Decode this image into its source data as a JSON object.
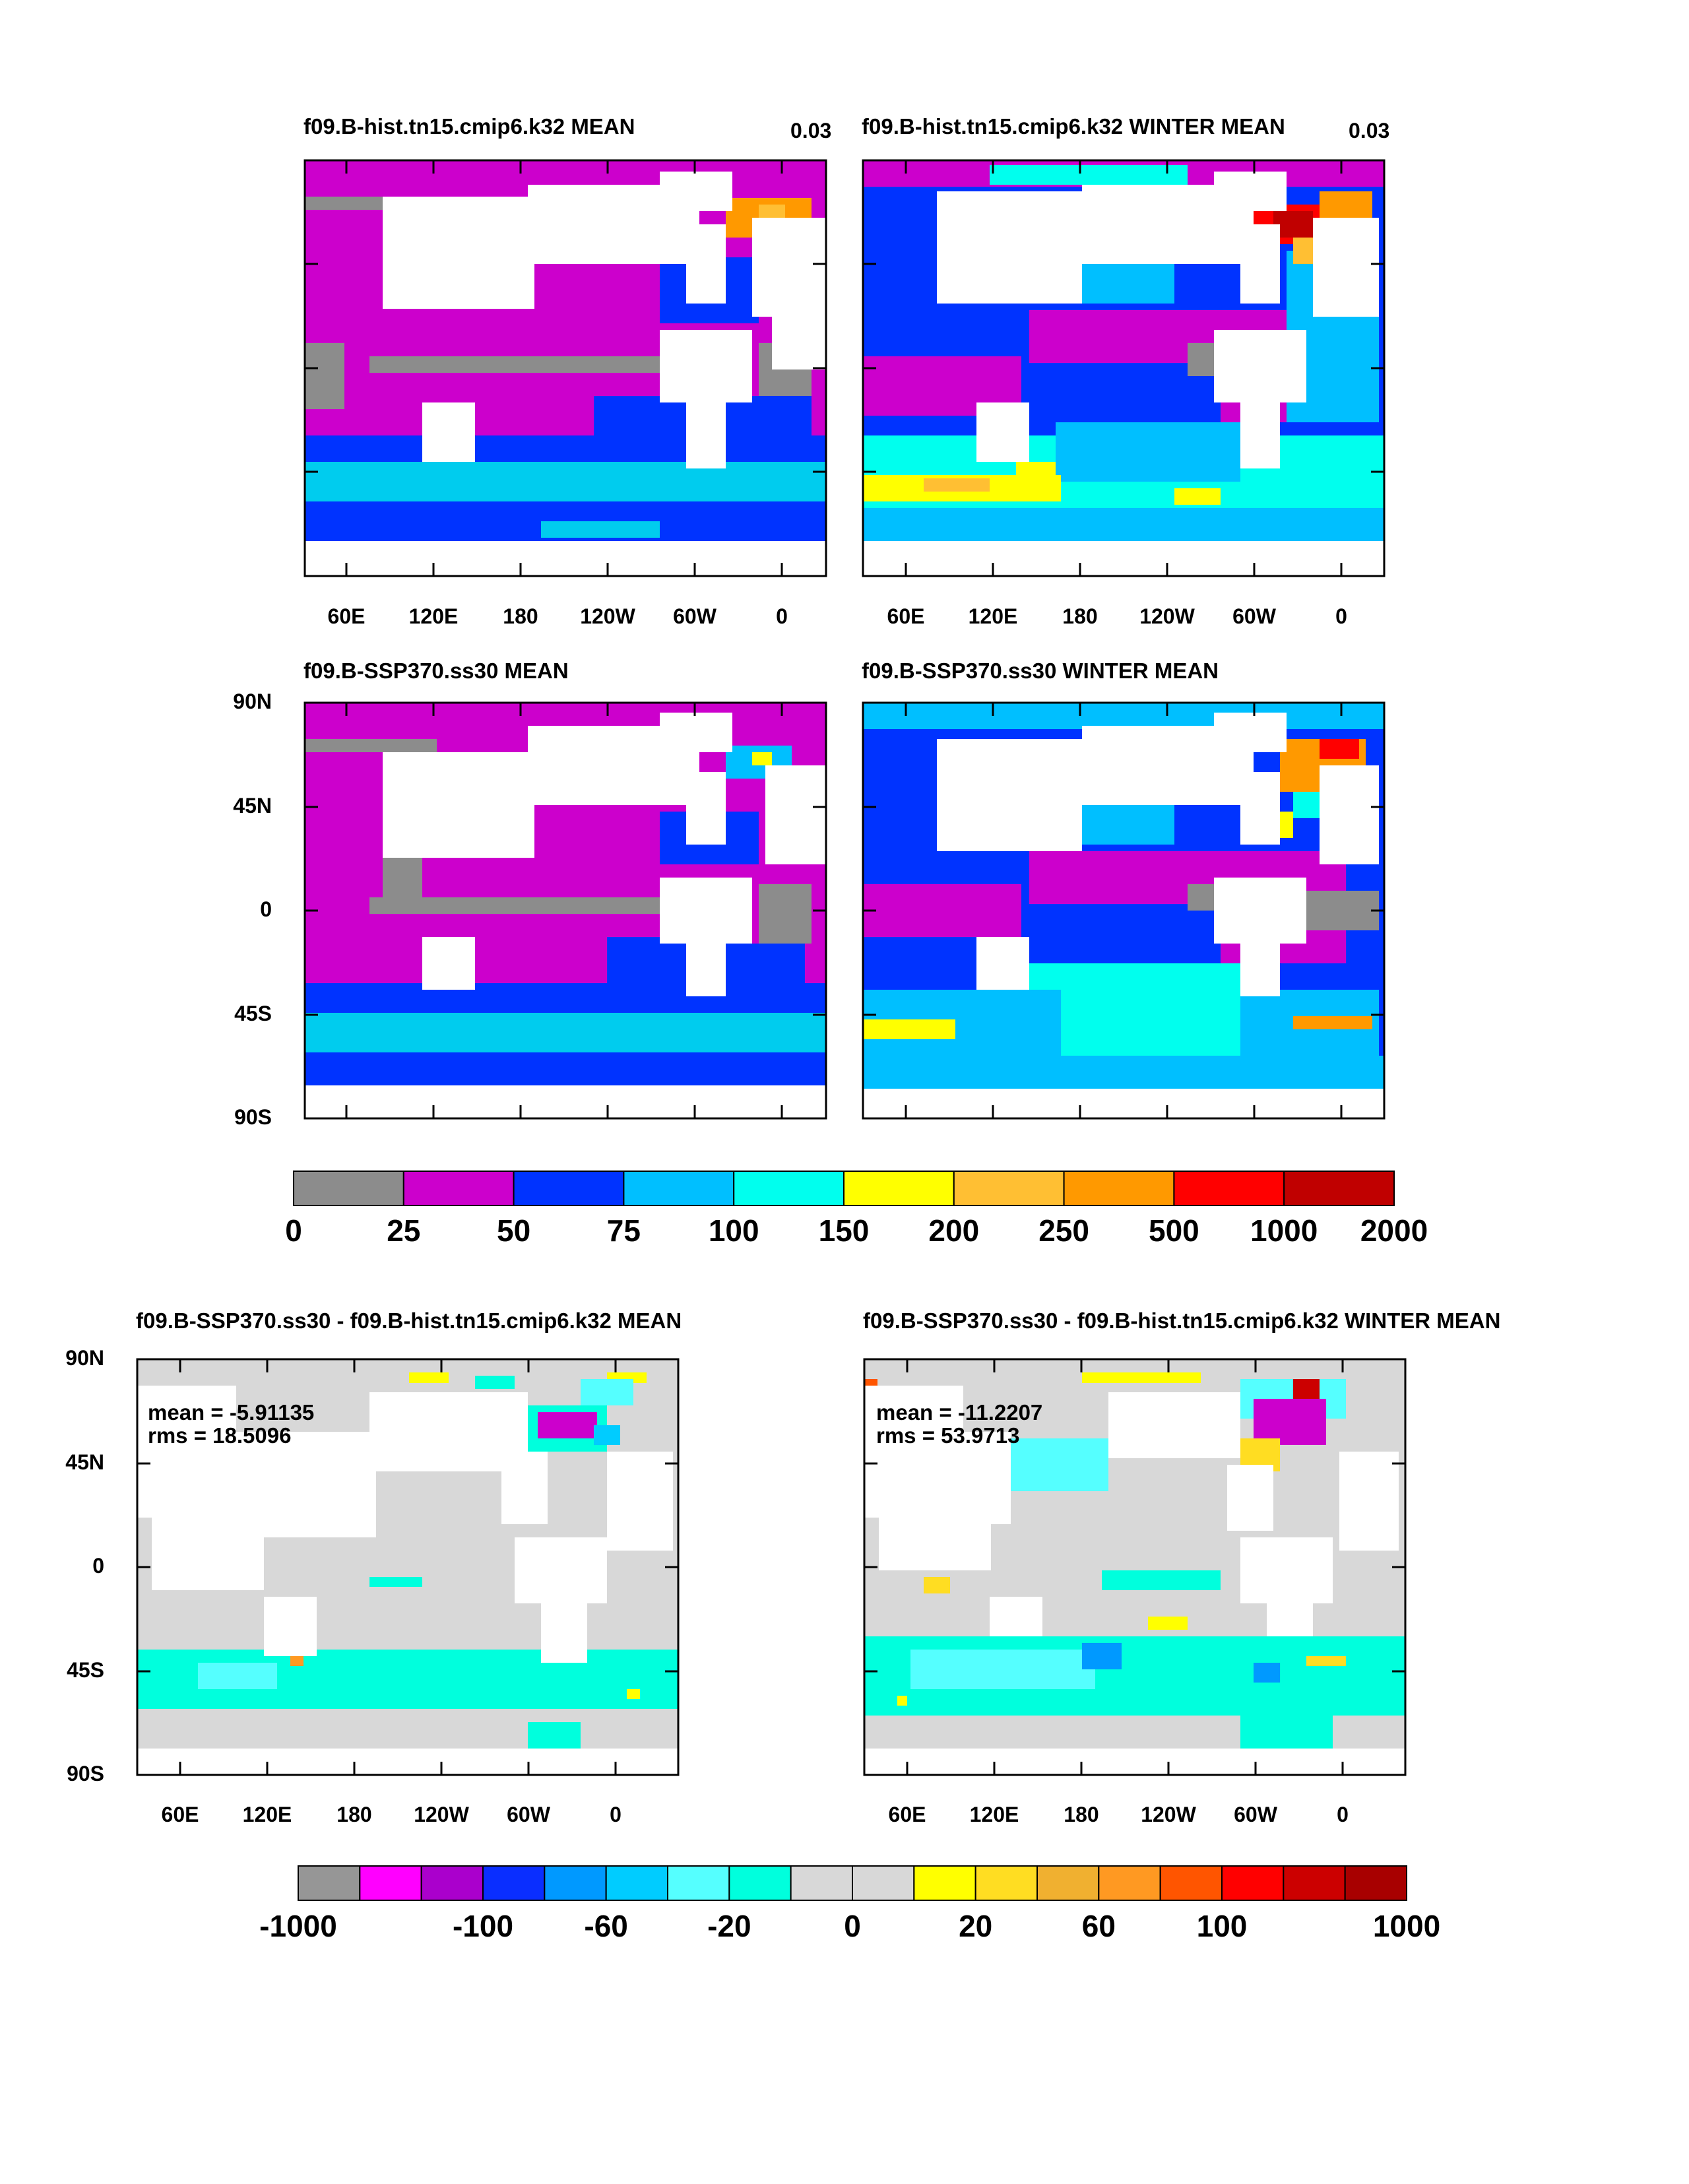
{
  "chart_data": [
    {
      "type": "heatmap",
      "title": "f09.B-hist.tn15.cmip6.k32 MEAN",
      "corner_label": "0.03",
      "xticks": [
        "60E",
        "120E",
        "180",
        "120W",
        "60W",
        "0"
      ],
      "colorbar": "cb1"
    },
    {
      "type": "heatmap",
      "title": "f09.B-hist.tn15.cmip6.k32 WINTER MEAN",
      "corner_label": "0.03",
      "xticks": [
        "60E",
        "120E",
        "180",
        "120W",
        "60W",
        "0"
      ],
      "colorbar": "cb1"
    },
    {
      "type": "heatmap",
      "title": "f09.B-SSP370.ss30 MEAN",
      "yticks": [
        "90N",
        "45N",
        "0",
        "45S",
        "90S"
      ],
      "colorbar": "cb1"
    },
    {
      "type": "heatmap",
      "title": "f09.B-SSP370.ss30 WINTER MEAN",
      "colorbar": "cb1"
    },
    {
      "type": "heatmap",
      "title": "f09.B-SSP370.ss30 - f09.B-hist.tn15.cmip6.k32 MEAN",
      "stats": {
        "mean": "mean = -5.91135",
        "rms": "rms = 18.5096"
      },
      "yticks": [
        "90N",
        "45N",
        "0",
        "45S",
        "90S"
      ],
      "xticks": [
        "60E",
        "120E",
        "180",
        "120W",
        "60W",
        "0"
      ],
      "colorbar": "cb2"
    },
    {
      "type": "heatmap",
      "title": "f09.B-SSP370.ss30 - f09.B-hist.tn15.cmip6.k32 WINTER MEAN",
      "stats": {
        "mean": "mean = -11.2207",
        "rms": "rms = 53.9713"
      },
      "xticks": [
        "60E",
        "120E",
        "180",
        "120W",
        "60W",
        "0"
      ],
      "colorbar": "cb2"
    }
  ],
  "colorbars": {
    "cb1": {
      "colors": [
        "#8c8c8c",
        "#cc00cc",
        "#0033ff",
        "#00bfff",
        "#00ffee",
        "#ffff00",
        "#ffbf33",
        "#ff9900",
        "#ff0000",
        "#c00000"
      ],
      "labels": [
        "0",
        "25",
        "50",
        "75",
        "100",
        "150",
        "200",
        "250",
        "500",
        "1000",
        "2000"
      ]
    },
    "cb2": {
      "colors": [
        "#969696",
        "#ff00ff",
        "#aa00cc",
        "#0a2eff",
        "#0099ff",
        "#00ccff",
        "#55ffff",
        "#00ffdd",
        "#d8d8d8",
        "#d8d8d8",
        "#ffff00",
        "#ffdd22",
        "#f0b030",
        "#ff9922",
        "#ff5500",
        "#ff0000",
        "#cc0000",
        "#a80000"
      ],
      "labels": [
        "-1000",
        "-100",
        "-60",
        "-20",
        "0",
        "20",
        "60",
        "100",
        "1000"
      ]
    }
  }
}
